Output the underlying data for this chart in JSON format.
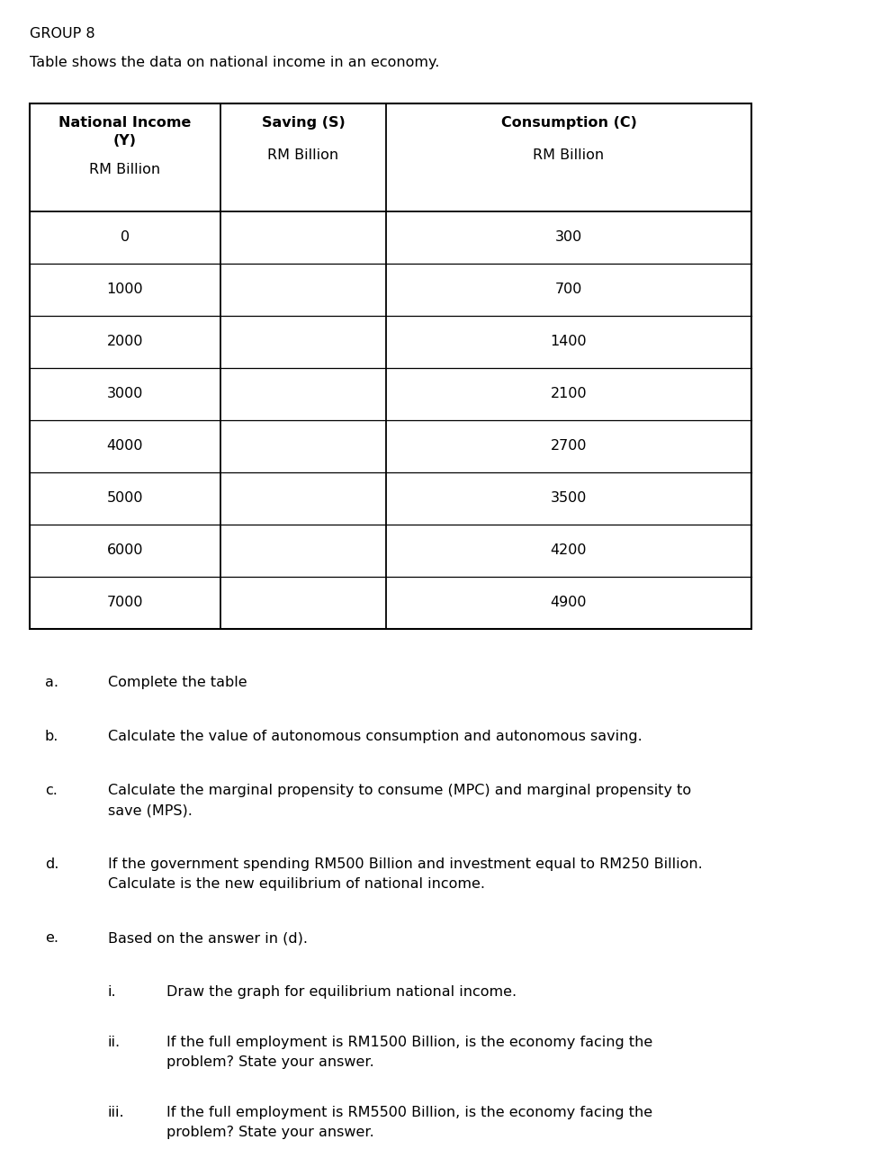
{
  "title": "GROUP 8",
  "subtitle": "Table shows the data on national income in an economy.",
  "col0_header_line1": "National Income",
  "col0_header_line2": "(Y)",
  "col0_header_line3": "RM Billion",
  "col1_header_line1": "Saving (S)",
  "col1_header_line2": "RM Billion",
  "col2_header_line1": "Consumption (C)",
  "col2_header_line2": "RM Billion",
  "table_col1": [
    "0",
    "1000",
    "2000",
    "3000",
    "4000",
    "5000",
    "6000",
    "7000"
  ],
  "table_col3": [
    "300",
    "700",
    "1400",
    "2100",
    "2700",
    "3500",
    "4200",
    "4900"
  ],
  "q_a_label": "a.",
  "q_a_text": "Complete the table",
  "q_b_label": "b.",
  "q_b_text": "Calculate the value of autonomous consumption and autonomous saving.",
  "q_c_label": "c.",
  "q_c_text1": "Calculate the marginal propensity to consume (MPC) and marginal propensity to",
  "q_c_text2": "save (MPS).",
  "q_d_label": "d.",
  "q_d_text1": "If the government spending RM500 Billion and investment equal to RM250 Billion.",
  "q_d_text2": "Calculate is the new equilibrium of national income.",
  "q_e_label": "e.",
  "q_e_text": "Based on the answer in (d).",
  "sub_i_label": "i.",
  "sub_i_text": "Draw the graph for equilibrium national income.",
  "sub_ii_label": "ii.",
  "sub_ii_text1": "If the full employment is RM1500 Billion, is the economy facing the",
  "sub_ii_text2": "problem? State your answer.",
  "sub_iii_label": "iii.",
  "sub_iii_text1": "If the full employment is RM5500 Billion, is the economy facing the",
  "sub_iii_text2": "problem? State your answer.",
  "bg_color": "#ffffff",
  "text_color": "#000000",
  "font_size_title": 11.5,
  "font_size_body": 11.5,
  "font_size_table": 11.5,
  "title_fontweight": "normal",
  "header_fontweight": "bold",
  "fig_width": 9.69,
  "fig_height": 12.77,
  "dpi": 100
}
